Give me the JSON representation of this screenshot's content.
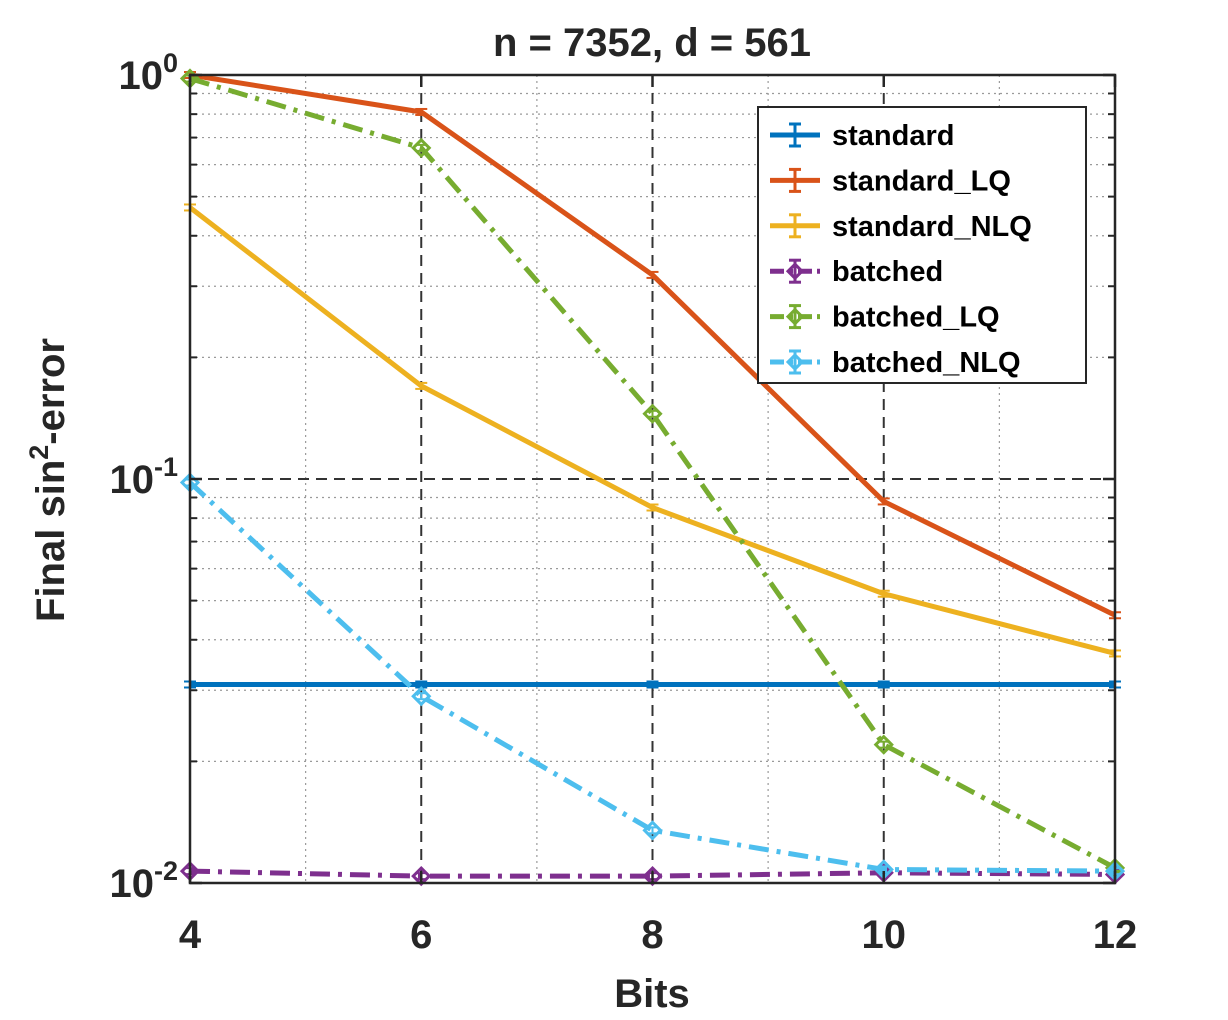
{
  "chart_data": {
    "type": "line",
    "title": "n = 7352, d = 561",
    "xlabel": "Bits",
    "ylabel_prefix": "Final sin",
    "ylabel_sup": "2",
    "ylabel_suffix": "-error",
    "x": [
      4,
      6,
      8,
      10,
      12
    ],
    "xlim": [
      4,
      12
    ],
    "ylim": [
      0.01,
      1
    ],
    "yscale": "log",
    "xticks": [
      "4",
      "6",
      "8",
      "10",
      "12"
    ],
    "yticks": [
      {
        "base": "10",
        "exp": "-2",
        "value": 0.01
      },
      {
        "base": "10",
        "exp": "-1",
        "value": 0.1
      },
      {
        "base": "10",
        "exp": "0",
        "value": 1
      }
    ],
    "grid": true,
    "legend_position": "top-right",
    "series": [
      {
        "name": "standard",
        "color": "#0072BD",
        "dash": "solid",
        "marker": "none",
        "values": [
          0.031,
          0.031,
          0.031,
          0.031,
          0.031
        ]
      },
      {
        "name": "standard_LQ",
        "color": "#D95319",
        "dash": "solid",
        "marker": "none",
        "values": [
          1.0,
          0.81,
          0.32,
          0.088,
          0.046
        ]
      },
      {
        "name": "standard_NLQ",
        "color": "#EDB120",
        "dash": "solid",
        "marker": "none",
        "values": [
          0.47,
          0.17,
          0.085,
          0.052,
          0.037
        ]
      },
      {
        "name": "batched",
        "color": "#7E2F8E",
        "dash": "dashdot",
        "marker": "diamond",
        "values": [
          0.0107,
          0.0104,
          0.0104,
          0.0106,
          0.0105
        ]
      },
      {
        "name": "batched_LQ",
        "color": "#77AC30",
        "dash": "dashdot",
        "marker": "diamond",
        "values": [
          0.98,
          0.66,
          0.145,
          0.022,
          0.0109
        ]
      },
      {
        "name": "batched_NLQ",
        "color": "#4DBEEE",
        "dash": "dashdot",
        "marker": "diamond",
        "values": [
          0.098,
          0.029,
          0.0135,
          0.0108,
          0.0107
        ]
      }
    ]
  }
}
